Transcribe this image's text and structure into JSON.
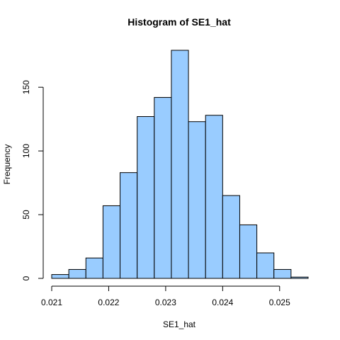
{
  "chart_data": {
    "type": "bar",
    "title": "Histogram of SE1_hat",
    "xlabel": "SE1_hat",
    "ylabel": "Frequency",
    "bar_color": "#99ccff",
    "bin_edges": [
      0.021,
      0.0213,
      0.0216,
      0.0219,
      0.0222,
      0.0225,
      0.0228,
      0.0231,
      0.0234,
      0.0237,
      0.024,
      0.0243,
      0.0246,
      0.0249,
      0.0252,
      0.0255
    ],
    "values": [
      3,
      7,
      16,
      57,
      83,
      127,
      142,
      179,
      123,
      128,
      65,
      42,
      20,
      7,
      1
    ],
    "xlim": [
      0.021,
      0.0255
    ],
    "ylim": [
      0,
      179
    ],
    "x_ticks": [
      0.021,
      0.022,
      0.023,
      0.024,
      0.025
    ],
    "x_tick_labels": [
      "0.021",
      "0.022",
      "0.023",
      "0.024",
      "0.025"
    ],
    "y_ticks": [
      0,
      50,
      100,
      150
    ],
    "y_tick_labels": [
      "0",
      "50",
      "100",
      "150"
    ]
  }
}
